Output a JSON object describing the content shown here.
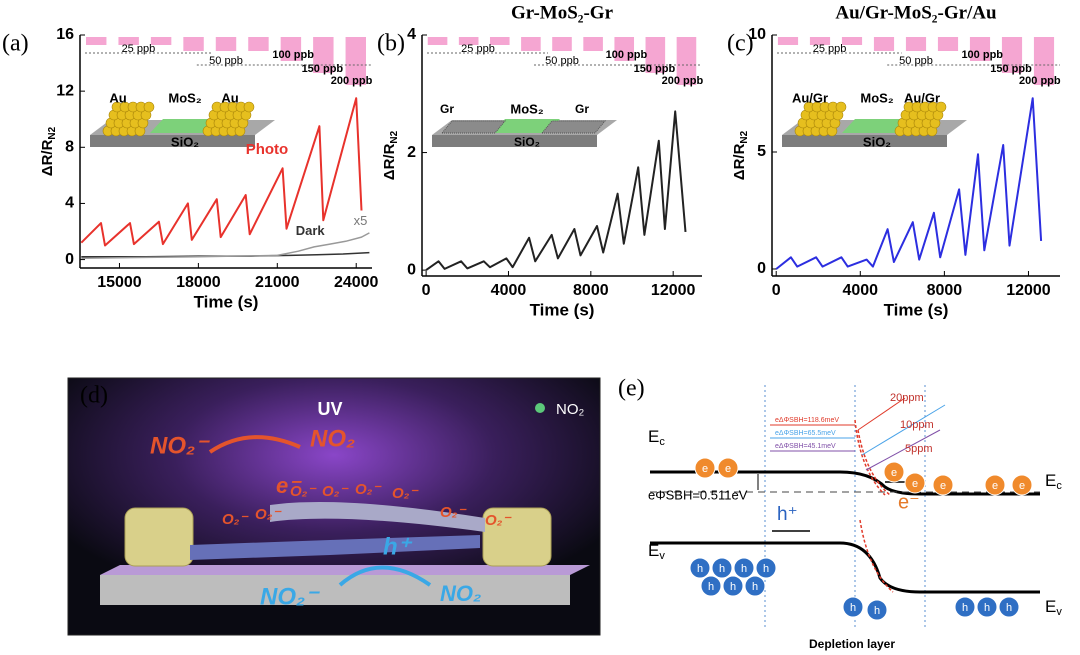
{
  "chart_data": [
    {
      "type": "line",
      "panel_label": "(a)",
      "ylabel": "ΔR/R",
      "ylabel_subscript": "N2",
      "xlabel": "Time (s)",
      "xlim": [
        13500,
        24600
      ],
      "xticks": [
        15000,
        18000,
        21000,
        24000
      ],
      "ylim": [
        -0.6,
        16
      ],
      "yticks": [
        0,
        4,
        8,
        12,
        16
      ],
      "series": [
        {
          "name": "Photo",
          "color": "#e8322c",
          "x": [
            13550,
            14300,
            14450,
            15400,
            15550,
            16500,
            16650,
            17600,
            17750,
            18700,
            18850,
            19800,
            19950,
            21200,
            21350,
            22600,
            22750,
            24000,
            24200
          ],
          "values": [
            1.2,
            2.6,
            1.0,
            2.6,
            1.1,
            2.7,
            1.1,
            4.0,
            1.4,
            4.3,
            1.6,
            4.6,
            1.8,
            6.5,
            2.2,
            9.5,
            2.8,
            11.5,
            3.5
          ]
        },
        {
          "name": "Dark",
          "color": "#333333",
          "x": [
            13550,
            16000,
            18000,
            20000,
            21500,
            22500,
            23500,
            24500
          ],
          "values": [
            0.2,
            0.2,
            0.25,
            0.25,
            0.3,
            0.35,
            0.4,
            0.5
          ]
        },
        {
          "name": "x5",
          "color": "#999999",
          "x": [
            13550,
            18000,
            21000,
            21800,
            22400,
            23000,
            23600,
            24200,
            24500
          ],
          "values": [
            0.1,
            0.2,
            0.3,
            0.6,
            0.9,
            1.1,
            1.3,
            1.6,
            1.9
          ]
        }
      ],
      "pulse_labels": [
        "25 ppb",
        "50 ppb",
        "100 ppb",
        "150 ppb",
        "200 ppb"
      ],
      "inset_labels": [
        "Au",
        "MoS₂",
        "Au",
        "SiO₂"
      ]
    },
    {
      "type": "line",
      "panel_label": "(b)",
      "title": "Gr-MoS₂-Gr",
      "ylabel": "ΔR/R",
      "ylabel_subscript": "N2",
      "xlabel": "Time (s)",
      "xlim": [
        -200,
        13400
      ],
      "xticks": [
        0,
        4000,
        8000,
        12000
      ],
      "ylim": [
        -0.1,
        4
      ],
      "yticks": [
        0,
        2,
        4
      ],
      "series": [
        {
          "name": "Gr-MoS₂-Gr",
          "color": "#222222",
          "x": [
            0,
            600,
            900,
            1700,
            2000,
            2800,
            3100,
            3900,
            4200,
            5000,
            5300,
            6100,
            6400,
            7200,
            7500,
            8300,
            8600,
            9300,
            9600,
            10300,
            10600,
            11300,
            11600,
            12100,
            12600
          ],
          "values": [
            0,
            0.15,
            0.02,
            0.15,
            0.03,
            0.15,
            0.05,
            0.2,
            0.05,
            0.55,
            0.15,
            0.6,
            0.2,
            0.7,
            0.25,
            0.75,
            0.3,
            1.3,
            0.45,
            1.75,
            0.6,
            2.2,
            0.7,
            2.7,
            0.65
          ]
        }
      ],
      "pulse_labels": [
        "25 ppb",
        "50 ppb",
        "100 ppb",
        "150 ppb",
        "200 ppb"
      ],
      "inset_labels": [
        "Gr",
        "MoS₂",
        "Gr",
        "SiO₂"
      ]
    },
    {
      "type": "line",
      "panel_label": "(c)",
      "title": "Au/Gr-MoS₂-Gr/Au",
      "ylabel": "ΔR/R",
      "ylabel_subscript": "N2",
      "xlabel": "Time (s)",
      "xlim": [
        -200,
        13500
      ],
      "xticks": [
        0,
        4000,
        8000,
        12000
      ],
      "ylim": [
        -0.3,
        10
      ],
      "yticks": [
        0,
        5,
        10
      ],
      "series": [
        {
          "name": "Au/Gr-MoS₂-Gr/Au",
          "color": "#2c2ee0",
          "x": [
            0,
            700,
            1000,
            1900,
            2200,
            3100,
            3400,
            4300,
            4600,
            5300,
            5600,
            6500,
            6800,
            7500,
            7800,
            8700,
            9000,
            9600,
            9900,
            10800,
            11100,
            12200,
            12600
          ],
          "values": [
            0,
            0.5,
            0.1,
            0.5,
            0.1,
            0.5,
            0.1,
            0.4,
            0.1,
            1.7,
            0.3,
            2.0,
            0.4,
            2.4,
            0.5,
            3.4,
            0.6,
            4.9,
            0.8,
            5.3,
            1.0,
            7.3,
            1.2
          ]
        }
      ],
      "pulse_labels": [
        "25 ppb",
        "50 ppb",
        "100 ppb",
        "150 ppb",
        "200 ppb"
      ],
      "inset_labels": [
        "Au/Gr",
        "MoS₂",
        "Au/Gr",
        "SiO₂"
      ]
    }
  ],
  "panel_d": {
    "label": "(d)",
    "uv": "UV",
    "legend": "NO₂",
    "reaction_left": [
      "NO₂⁻",
      "NO₂"
    ],
    "electron": "e⁻",
    "hole": "h⁺",
    "reaction_bottom": [
      "NO₂⁻",
      "NO₂"
    ],
    "adsorbed": "O₂⁻"
  },
  "panel_e": {
    "label": "(e)",
    "ec": "E",
    "ec_sub": "c",
    "ev": "E",
    "ev_sub": "v",
    "barrier": "eΦSBH=0.511eV",
    "concentrations": [
      "20ppm",
      "10ppm",
      "5ppm"
    ],
    "shifts": [
      "eΔΦSBH=118.6meV",
      "eΔΦSBH=65.5meV",
      "eΔΦSBH=45.1meV"
    ],
    "electron_symbol": "e",
    "hole_symbol": "h",
    "hole_label": "h⁺",
    "electron_label": "e⁻",
    "depletion": "Depletion layer"
  }
}
